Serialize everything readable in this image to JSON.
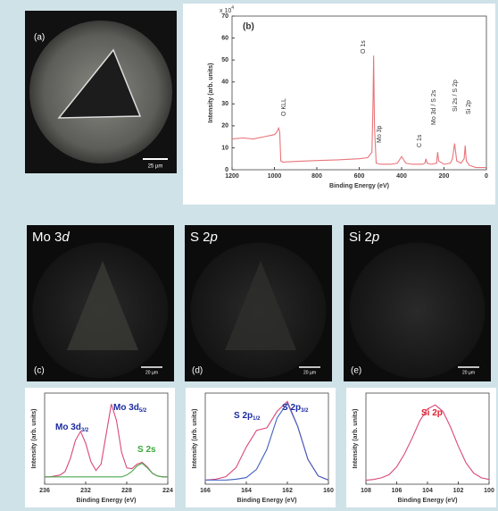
{
  "panels": {
    "a": {
      "label": "(a)",
      "scale_bar": "25 µm"
    },
    "images": [
      {
        "title": "Mo 3",
        "title_italic": "d",
        "label": "(c)",
        "scale_bar": "20 µm"
      },
      {
        "title": "S 2",
        "title_italic": "p",
        "label": "(d)",
        "scale_bar": "20 µm"
      },
      {
        "title": "Si 2",
        "title_italic": "p",
        "label": "(e)",
        "scale_bar": "20 µm"
      }
    ]
  },
  "chart_data": [
    {
      "type": "line",
      "label": "(b)",
      "x_label": "Binding Energy (eV)",
      "y_label": "Intensity (arb. units)",
      "y_multiplier": {
        "text": "x 10",
        "exp": "4"
      },
      "x": [
        1200,
        1150,
        1100,
        1050,
        1000,
        990,
        980,
        975,
        970,
        960,
        900,
        800,
        700,
        600,
        560,
        540,
        535,
        532,
        528,
        520,
        500,
        450,
        420,
        400,
        380,
        350,
        300,
        290,
        285,
        280,
        260,
        235,
        230,
        225,
        200,
        170,
        160,
        150,
        140,
        120,
        105,
        100,
        95,
        80,
        50,
        20,
        0
      ],
      "series": [
        {
          "color": "#e8757a",
          "values": [
            14,
            14.5,
            14,
            15,
            16,
            17,
            19,
            17,
            4,
            3.5,
            3.8,
            4.2,
            4.5,
            5,
            5.5,
            8,
            30,
            52,
            20,
            3,
            2.5,
            2.5,
            3,
            6,
            3,
            2.5,
            2.5,
            3,
            5,
            3,
            2.5,
            3,
            8,
            4,
            2.5,
            3,
            5,
            12,
            4,
            3,
            5,
            11,
            4,
            2,
            1,
            1,
            1
          ]
        }
      ],
      "xlim": [
        1200,
        0
      ],
      "ylim": [
        0,
        70
      ],
      "xticks": [
        1200,
        1000,
        800,
        600,
        400,
        200,
        0
      ],
      "yticks": [
        0,
        10,
        20,
        30,
        40,
        50,
        60,
        70
      ],
      "annotations": [
        {
          "text": "O KLL"
        },
        {
          "text": "O 1s"
        },
        {
          "text": "Mo 3p"
        },
        {
          "text": "C 1s"
        },
        {
          "text": "Mo 3d / S 2s"
        },
        {
          "text": "Si 2s / S 2p"
        },
        {
          "text": "Si 2p"
        }
      ]
    },
    {
      "type": "line",
      "x_label": "Binding Energy (eV)",
      "y_label": "Intensity (arb. units)",
      "x": [
        236,
        235.5,
        235,
        234.5,
        234,
        233.5,
        233,
        232.5,
        232,
        231.5,
        231,
        230.5,
        230,
        229.5,
        229,
        228.5,
        228,
        227.5,
        227,
        226.5,
        226,
        225.5,
        225,
        224.5,
        224
      ],
      "series": [
        {
          "color": "#d9487a",
          "values": [
            8,
            8,
            9,
            10,
            14,
            28,
            48,
            58,
            45,
            25,
            15,
            22,
            55,
            88,
            70,
            35,
            18,
            17,
            22,
            24,
            19,
            12,
            9,
            8,
            8
          ]
        },
        {
          "color": "#4aa84e",
          "values": [
            8,
            8,
            8,
            8,
            8,
            8,
            8,
            8,
            8,
            8,
            8,
            8,
            8,
            8,
            8,
            8,
            10,
            14,
            20,
            23,
            18,
            12,
            9,
            8,
            8
          ]
        }
      ],
      "xlim": [
        236,
        224
      ],
      "ylim": [
        0,
        100
      ],
      "xticks": [
        236,
        232,
        228,
        224
      ],
      "annotations": [
        {
          "text": "Mo 3d",
          "sub": "3/2",
          "color": "#1a2aa0"
        },
        {
          "text": "Mo 3d",
          "sub": "5/2",
          "color": "#1a2aa0"
        },
        {
          "text": "S 2s",
          "color": "#3aa83a"
        }
      ]
    },
    {
      "type": "line",
      "x_label": "Binding Energy (eV)",
      "y_label": "Intensity (arb. units)",
      "x": [
        166,
        165.5,
        165,
        164.5,
        164,
        163.5,
        163,
        162.5,
        162,
        161.5,
        161,
        160.5,
        160
      ],
      "series": [
        {
          "color": "#d9487a",
          "values": [
            5,
            6,
            9,
            20,
            45,
            65,
            68,
            88,
            100,
            70,
            30,
            10,
            5
          ]
        },
        {
          "color": "#4060c0",
          "values": [
            5,
            5,
            5,
            6,
            8,
            18,
            42,
            80,
            98,
            70,
            30,
            10,
            5
          ]
        }
      ],
      "xlim": [
        166,
        160
      ],
      "ylim": [
        0,
        110
      ],
      "xticks": [
        166,
        164,
        162,
        160
      ],
      "annotations": [
        {
          "text": "S 2p",
          "sub": "1/2",
          "color": "#1a2aa0"
        },
        {
          "text": "S 2p",
          "sub": "3/2",
          "color": "#1a2aa0"
        }
      ]
    },
    {
      "type": "line",
      "x_label": "Binding Energy (eV)",
      "y_label": "Intensity (arb. units)",
      "x": [
        108,
        107.5,
        107,
        106.5,
        106,
        105.5,
        105,
        104.5,
        104,
        103.5,
        103,
        102.5,
        102,
        101.5,
        101,
        100.5,
        100
      ],
      "series": [
        {
          "color": "#d9487a",
          "values": [
            5,
            6,
            8,
            12,
            22,
            38,
            58,
            80,
            95,
            100,
            92,
            72,
            48,
            27,
            14,
            8,
            6
          ]
        }
      ],
      "xlim": [
        108,
        100
      ],
      "ylim": [
        0,
        115
      ],
      "xticks": [
        108,
        106,
        104,
        102,
        100
      ],
      "annotations": [
        {
          "text": "Si 2p",
          "color": "#e02030"
        }
      ]
    }
  ]
}
